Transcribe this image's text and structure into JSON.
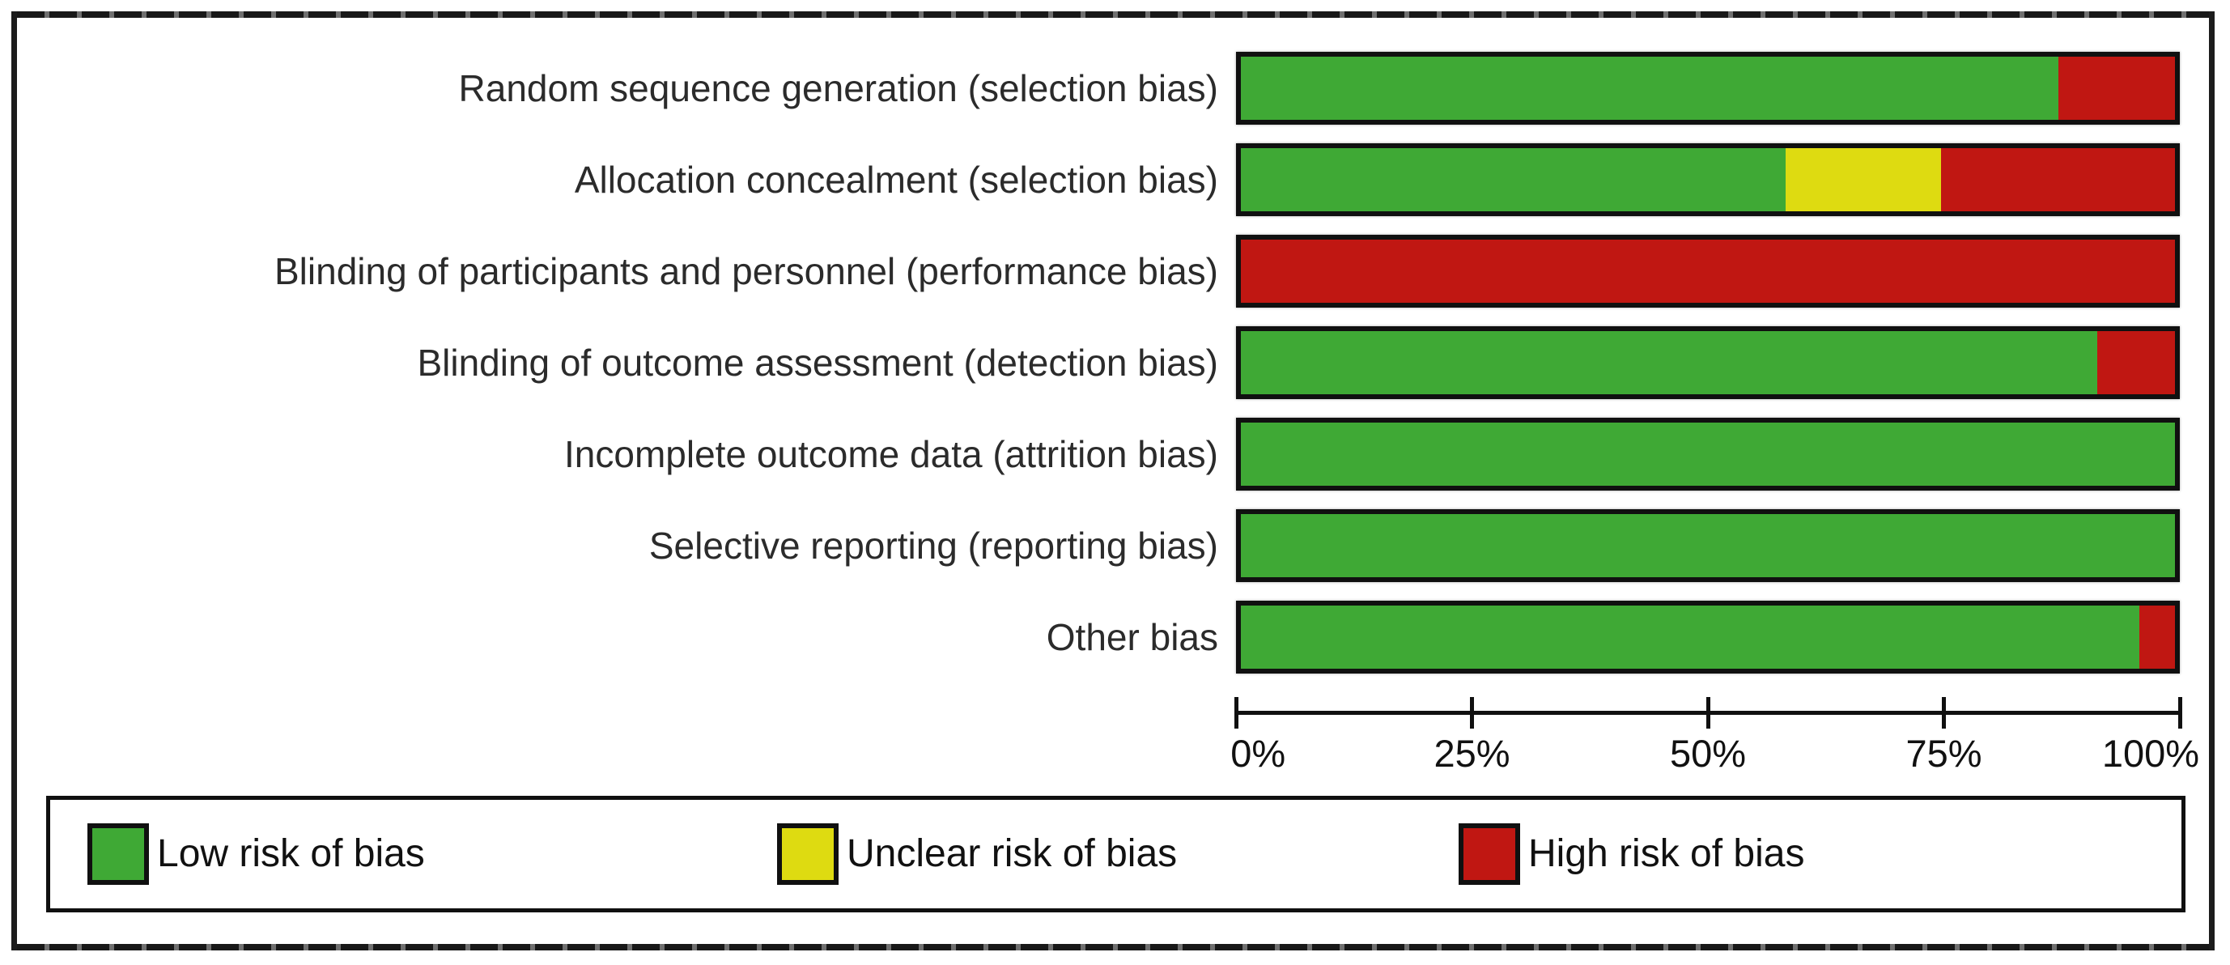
{
  "figure": {
    "kind": "risk-of-bias-summary-graph"
  },
  "colors": {
    "low": "#3fa935",
    "unclear": "#dedb11",
    "high": "#c01712",
    "frame": "#1c1c1c",
    "text": "#2b2b2b"
  },
  "chart_data": {
    "type": "bar",
    "orientation": "horizontal_stacked",
    "title": "",
    "xlabel": "",
    "ylabel": "",
    "xlim": [
      0,
      100
    ],
    "x_ticks": [
      "0%",
      "25%",
      "50%",
      "75%",
      "100%"
    ],
    "x_tick_values": [
      0,
      25,
      50,
      75,
      100
    ],
    "grid": false,
    "legend_position": "bottom",
    "categories": [
      "Random sequence generation (selection bias)",
      "Allocation concealment (selection bias)",
      "Blinding of participants and personnel (performance bias)",
      "Blinding of outcome assessment (detection bias)",
      "Incomplete outcome data (attrition bias)",
      "Selective reporting (reporting bias)",
      "Other bias"
    ],
    "series": [
      {
        "name": "Low risk of bias",
        "key": "low",
        "color": "#3fa935",
        "values": [
          87.5,
          58.3,
          0,
          91.7,
          100,
          100,
          96.2
        ]
      },
      {
        "name": "Unclear risk of bias",
        "key": "unclear",
        "color": "#dedb11",
        "values": [
          0,
          16.7,
          0,
          0,
          0,
          0,
          0
        ]
      },
      {
        "name": "High risk of bias",
        "key": "high",
        "color": "#c01712",
        "values": [
          12.5,
          25.0,
          100,
          8.3,
          0,
          0,
          3.8
        ]
      }
    ]
  },
  "legend": {
    "items": [
      {
        "label": "Low risk of bias",
        "key": "low",
        "color": "#3fa935"
      },
      {
        "label": "Unclear risk of bias",
        "key": "unclear",
        "color": "#dedb11"
      },
      {
        "label": "High risk of bias",
        "key": "high",
        "color": "#c01712"
      }
    ]
  }
}
